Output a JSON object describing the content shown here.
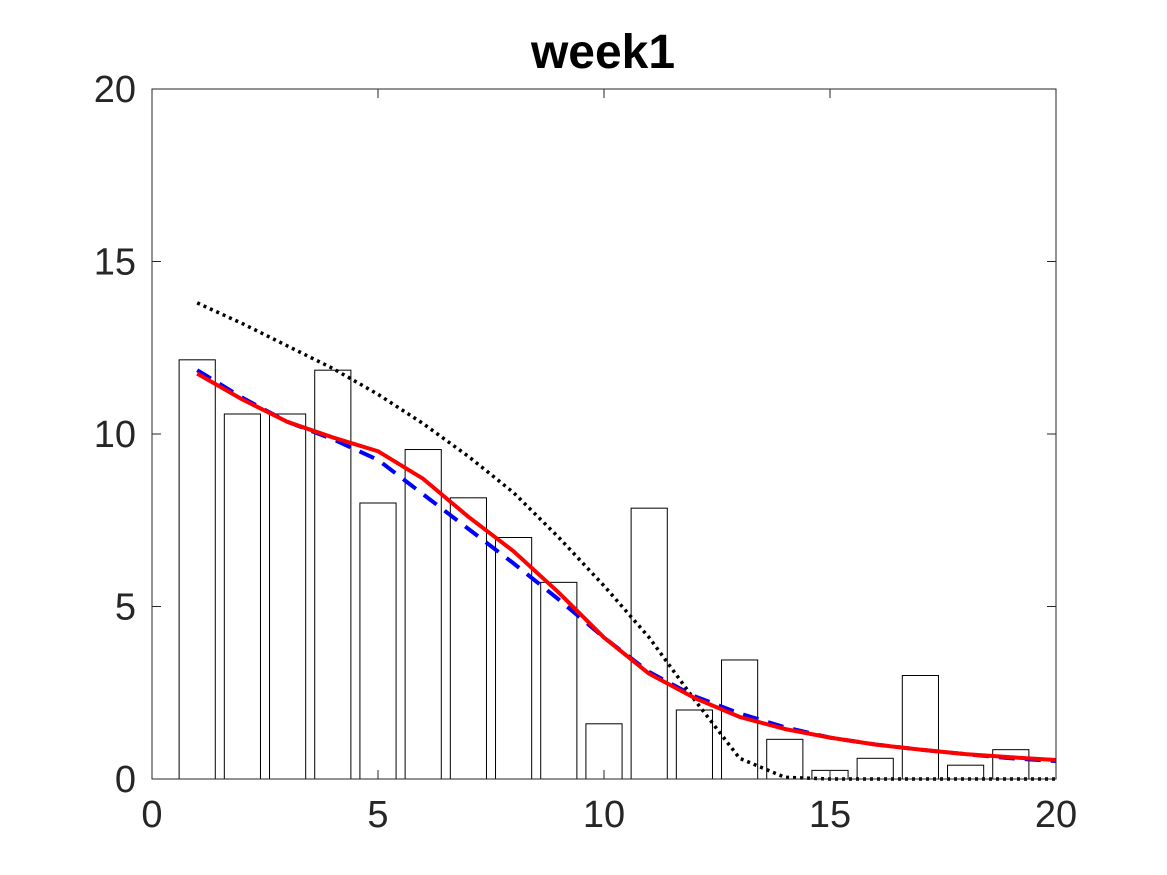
{
  "chart_data": {
    "type": "bar",
    "title": "week1",
    "xlabel": "",
    "ylabel": "",
    "xlim": [
      0,
      20
    ],
    "ylim": [
      0,
      20
    ],
    "xticks": [
      0,
      5,
      10,
      15,
      20
    ],
    "yticks": [
      0,
      5,
      10,
      15,
      20
    ],
    "grid": false,
    "legend": "none",
    "bar_width": 0.8,
    "bars": {
      "x": [
        1,
        2,
        3,
        4,
        5,
        6,
        7,
        8,
        9,
        10,
        11,
        12,
        13,
        14,
        15,
        16,
        17,
        18,
        19
      ],
      "values": [
        12.15,
        10.58,
        10.58,
        11.85,
        8.0,
        9.55,
        8.15,
        7.0,
        5.7,
        1.6,
        7.85,
        2.0,
        3.45,
        1.15,
        0.25,
        0.6,
        3.0,
        0.4,
        0.85
      ],
      "fill": "#ffffff",
      "stroke": "#000000"
    },
    "series": [
      {
        "style": "dotted",
        "color": "#000000",
        "x": [
          1,
          2,
          3,
          4,
          5,
          6,
          7,
          8,
          9,
          10,
          11,
          12,
          13,
          14,
          15,
          16,
          17,
          18,
          19,
          20
        ],
        "values": [
          13.8,
          13.2,
          12.55,
          11.9,
          11.15,
          10.3,
          9.35,
          8.3,
          7.0,
          5.6,
          4.1,
          2.3,
          0.6,
          0.05,
          0.0,
          0.0,
          0.0,
          0.0,
          0.0,
          0.0
        ]
      },
      {
        "style": "dashed",
        "color": "#0000ff",
        "x": [
          1,
          2,
          3,
          4,
          5,
          6,
          7,
          8,
          9,
          10,
          11,
          12,
          13,
          14,
          15,
          16,
          17,
          18,
          19,
          20
        ],
        "values": [
          11.85,
          11.05,
          10.35,
          9.85,
          9.25,
          8.25,
          7.25,
          6.25,
          5.2,
          4.1,
          3.1,
          2.4,
          1.9,
          1.5,
          1.2,
          1.0,
          0.85,
          0.72,
          0.6,
          0.52
        ]
      },
      {
        "style": "solid",
        "color": "#ff0000",
        "x": [
          1,
          2,
          3,
          4,
          5,
          6,
          7,
          8,
          9,
          10,
          11,
          12,
          13,
          14,
          15,
          16,
          17,
          18,
          19,
          20
        ],
        "values": [
          11.75,
          11.0,
          10.35,
          9.9,
          9.5,
          8.7,
          7.6,
          6.6,
          5.4,
          4.1,
          3.05,
          2.35,
          1.8,
          1.45,
          1.2,
          1.0,
          0.85,
          0.72,
          0.63,
          0.55
        ]
      }
    ]
  }
}
